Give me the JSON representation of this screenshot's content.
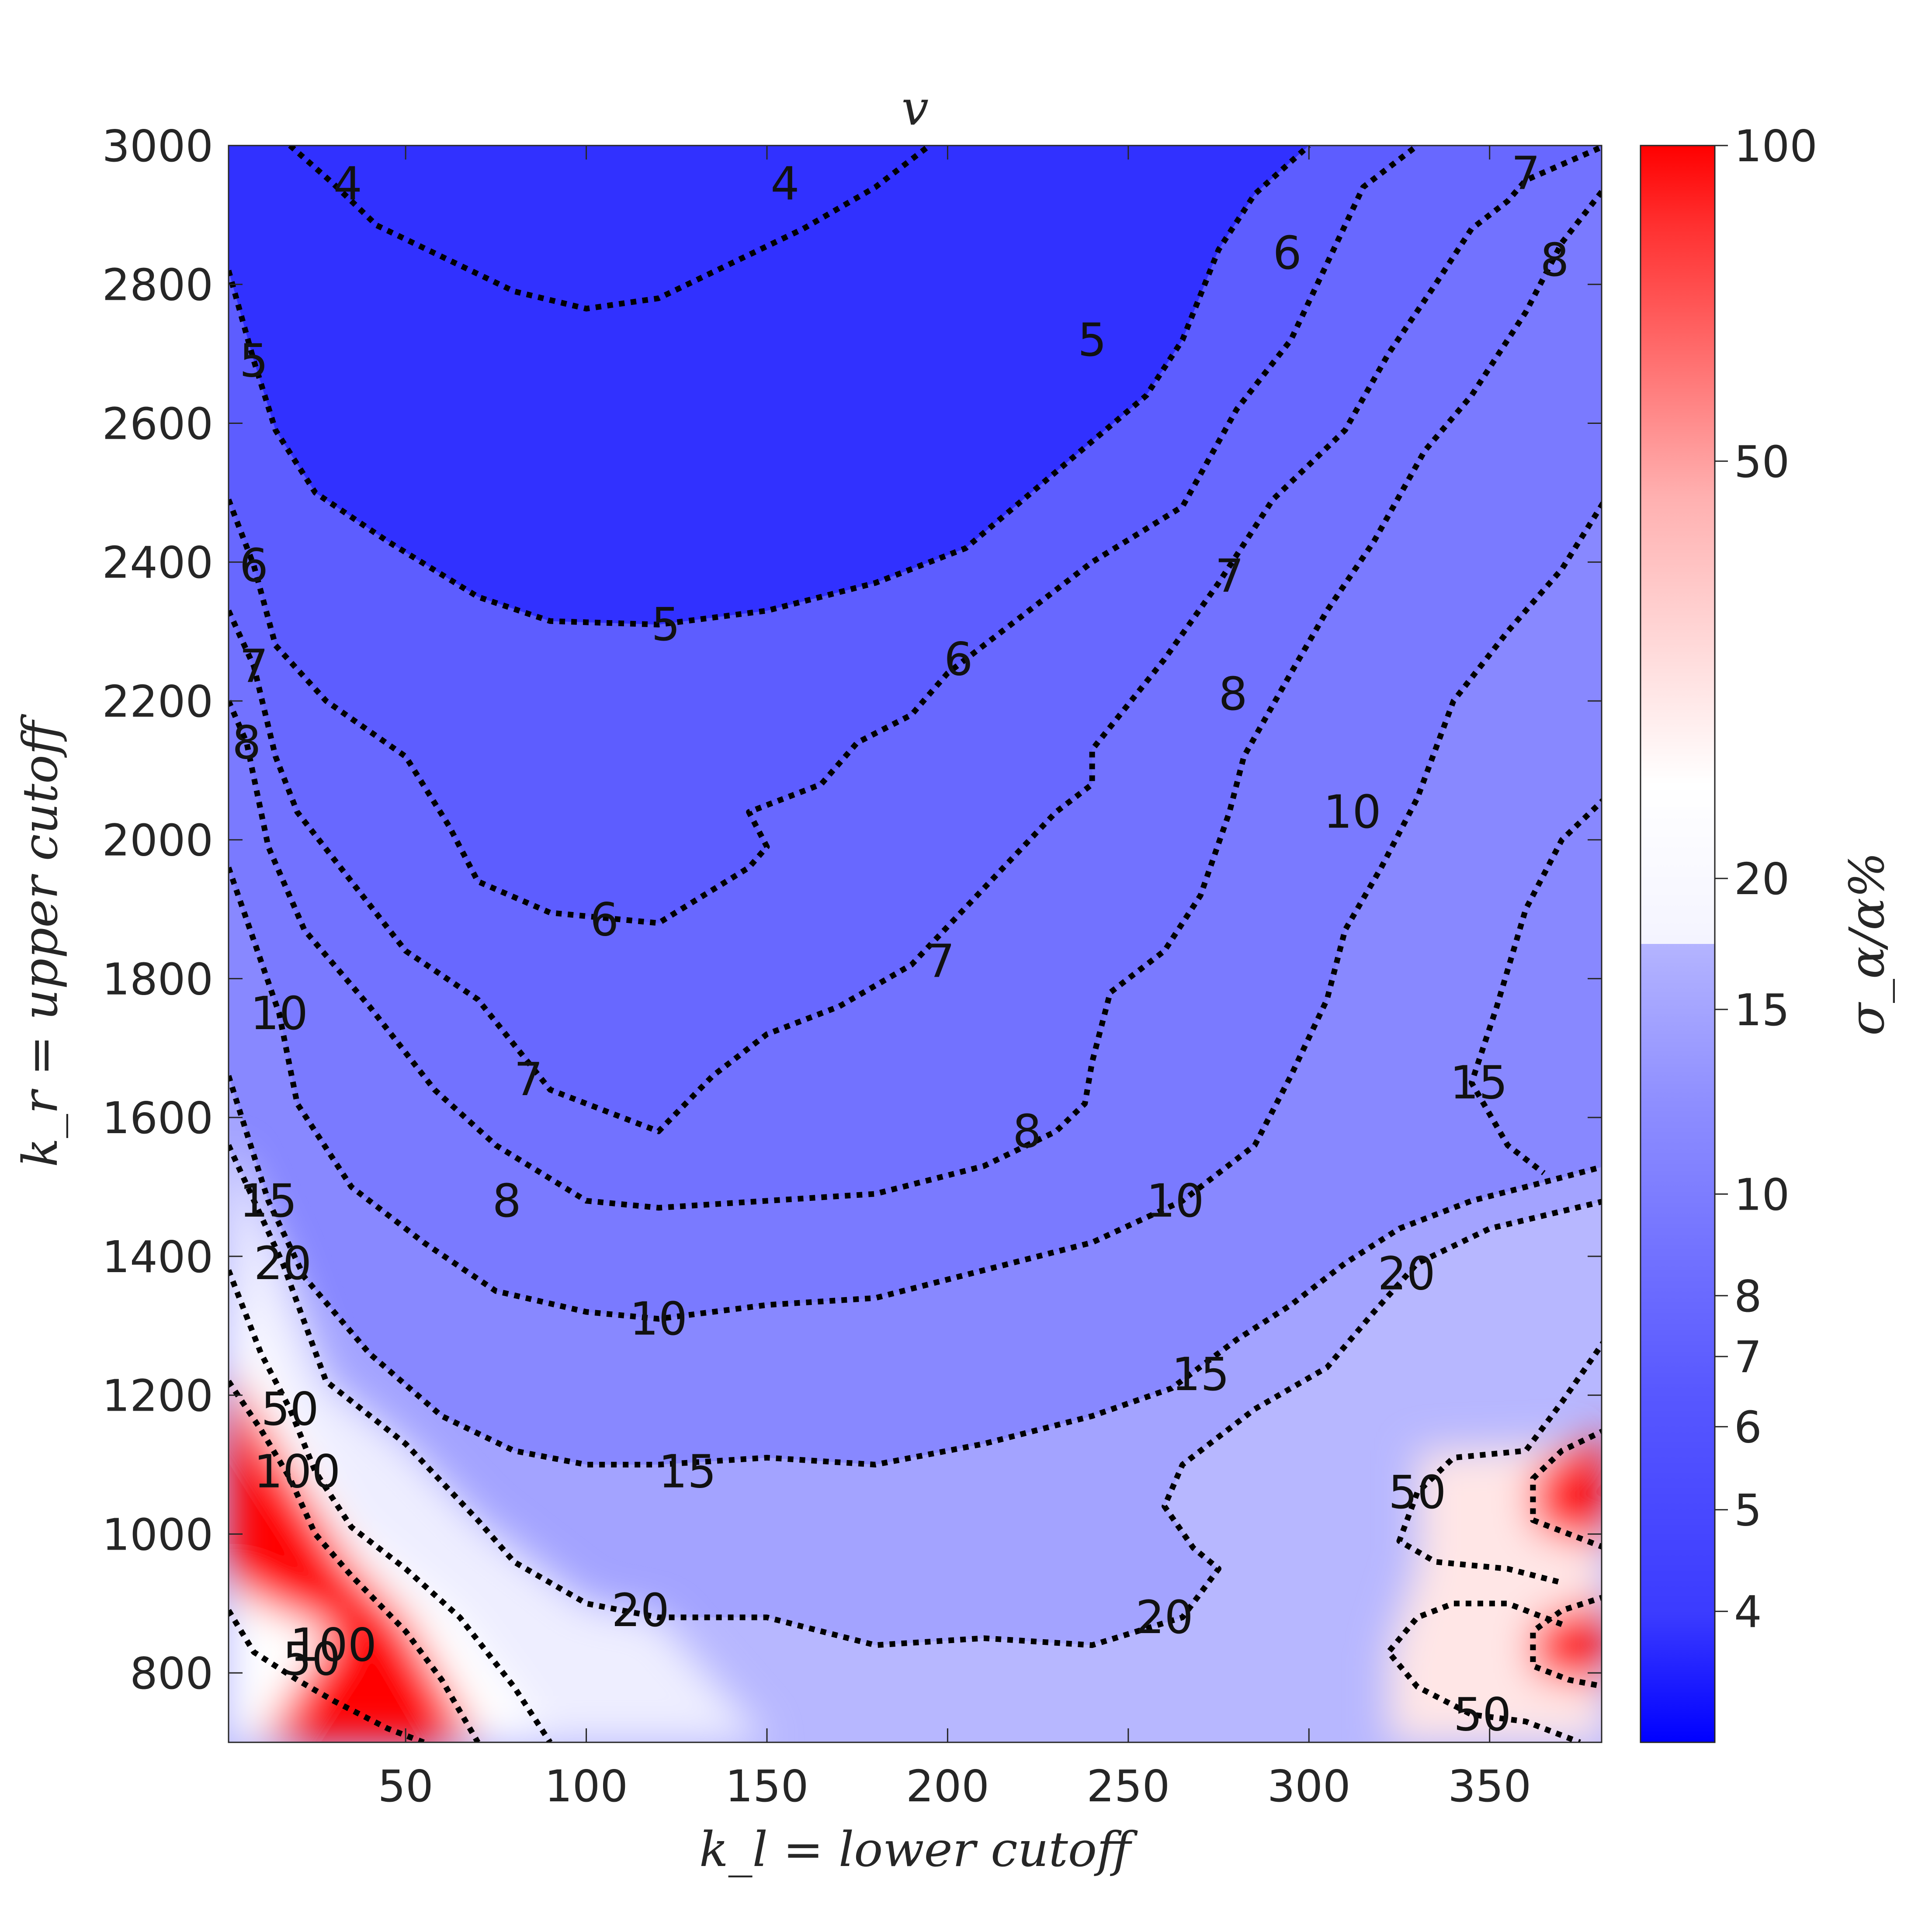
{
  "chart_data": {
    "type": "heatmap",
    "title": "v",
    "xlabel": "k_l = lower cutoff",
    "ylabel": "k_r = upper cutoff",
    "xlim": [
      1,
      381
    ],
    "ylim": [
      700,
      3000
    ],
    "x_ticks": [
      50,
      100,
      150,
      200,
      250,
      300,
      350
    ],
    "y_ticks": [
      800,
      1000,
      1200,
      1400,
      1600,
      1800,
      2000,
      2200,
      2400,
      2600,
      2800,
      3000
    ],
    "colorbar": {
      "label": "σ_α/α%",
      "scale": "log",
      "range": [
        3,
        100
      ],
      "ticks": [
        4,
        5,
        6,
        7,
        8,
        10,
        15,
        20,
        50,
        100
      ],
      "colors": {
        "low": "#0000ff",
        "mid": "#ffffff",
        "high": "#ff0000"
      }
    },
    "contour_levels": [
      4,
      5,
      6,
      7,
      8,
      10,
      15,
      20,
      50,
      100
    ],
    "contours": [
      {
        "level": 4,
        "label": "4",
        "label_at": [
          34,
          2945
        ],
        "points": [
          [
            18,
            3000
          ],
          [
            30,
            2945
          ],
          [
            42,
            2885
          ],
          [
            60,
            2840
          ],
          [
            80,
            2790
          ],
          [
            100,
            2765
          ],
          [
            120,
            2780
          ],
          [
            140,
            2830
          ],
          [
            160,
            2880
          ],
          [
            180,
            2940
          ],
          [
            195,
            3000
          ]
        ]
      },
      {
        "level": 4,
        "label": "4",
        "label_at": [
          155,
          2945
        ]
      },
      {
        "level": 5,
        "label": "5",
        "label_at": [
          8,
          2690
        ],
        "points": [
          [
            1,
            2820
          ],
          [
            8,
            2690
          ],
          [
            14,
            2590
          ],
          [
            25,
            2500
          ],
          [
            45,
            2430
          ],
          [
            70,
            2350
          ],
          [
            90,
            2315
          ],
          [
            120,
            2310
          ],
          [
            150,
            2330
          ],
          [
            180,
            2370
          ],
          [
            205,
            2420
          ],
          [
            230,
            2530
          ],
          [
            255,
            2640
          ],
          [
            265,
            2720
          ],
          [
            275,
            2850
          ],
          [
            285,
            2930
          ],
          [
            300,
            3000
          ]
        ]
      },
      {
        "level": 5,
        "label": "5",
        "label_at": [
          122,
          2310
        ]
      },
      {
        "level": 5,
        "label": "5",
        "label_at": [
          240,
          2720
        ]
      },
      {
        "level": 6,
        "label": "6",
        "label_at": [
          8,
          2395
        ],
        "points": [
          [
            1,
            2490
          ],
          [
            8,
            2395
          ],
          [
            14,
            2280
          ],
          [
            28,
            2200
          ],
          [
            50,
            2120
          ],
          [
            62,
            2020
          ],
          [
            70,
            1940
          ],
          [
            90,
            1895
          ],
          [
            120,
            1880
          ],
          [
            145,
            1960
          ],
          [
            150,
            1990
          ],
          [
            145,
            2040
          ],
          [
            165,
            2080
          ],
          [
            175,
            2140
          ],
          [
            190,
            2180
          ],
          [
            200,
            2240
          ],
          [
            215,
            2300
          ],
          [
            240,
            2400
          ],
          [
            265,
            2480
          ],
          [
            280,
            2620
          ],
          [
            295,
            2720
          ],
          [
            305,
            2830
          ],
          [
            315,
            2940
          ],
          [
            330,
            3000
          ]
        ]
      },
      {
        "level": 6,
        "label": "6",
        "label_at": [
          105,
          1885
        ]
      },
      {
        "level": 6,
        "label": "6",
        "label_at": [
          203,
          2260
        ]
      },
      {
        "level": 6,
        "label": "6",
        "label_at": [
          294,
          2845
        ]
      },
      {
        "level": 7,
        "label": "7",
        "label_at": [
          8,
          2250
        ],
        "points": [
          [
            1,
            2330
          ],
          [
            8,
            2250
          ],
          [
            14,
            2120
          ],
          [
            20,
            2040
          ],
          [
            35,
            1940
          ],
          [
            50,
            1840
          ],
          [
            70,
            1770
          ],
          [
            90,
            1640
          ],
          [
            120,
            1580
          ],
          [
            135,
            1660
          ],
          [
            150,
            1720
          ],
          [
            170,
            1760
          ],
          [
            190,
            1820
          ],
          [
            210,
            1930
          ],
          [
            230,
            2040
          ],
          [
            240,
            2080
          ],
          [
            240,
            2130
          ],
          [
            260,
            2260
          ],
          [
            275,
            2370
          ],
          [
            290,
            2490
          ],
          [
            310,
            2590
          ],
          [
            322,
            2700
          ],
          [
            335,
            2800
          ],
          [
            345,
            2880
          ],
          [
            355,
            2920
          ],
          [
            360,
            2950
          ],
          [
            382,
            3000
          ]
        ]
      },
      {
        "level": 7,
        "label": "7",
        "label_at": [
          84,
          1655
        ]
      },
      {
        "level": 7,
        "label": "7",
        "label_at": [
          198,
          1825
        ]
      },
      {
        "level": 7,
        "label": "7",
        "label_at": [
          278,
          2380
        ]
      },
      {
        "level": 7,
        "label": "7",
        "label_at": [
          360,
          2960
        ]
      },
      {
        "level": 8,
        "label": "8",
        "label_at": [
          6,
          2140
        ],
        "points": [
          [
            1,
            2200
          ],
          [
            6,
            2140
          ],
          [
            12,
            1990
          ],
          [
            22,
            1870
          ],
          [
            40,
            1760
          ],
          [
            58,
            1640
          ],
          [
            75,
            1560
          ],
          [
            100,
            1480
          ],
          [
            120,
            1470
          ],
          [
            150,
            1480
          ],
          [
            180,
            1490
          ],
          [
            210,
            1530
          ],
          [
            230,
            1580
          ],
          [
            238,
            1620
          ],
          [
            240,
            1680
          ],
          [
            245,
            1780
          ],
          [
            260,
            1840
          ],
          [
            270,
            1920
          ],
          [
            278,
            2040
          ],
          [
            282,
            2120
          ],
          [
            295,
            2240
          ],
          [
            305,
            2330
          ],
          [
            318,
            2430
          ],
          [
            332,
            2560
          ],
          [
            345,
            2640
          ],
          [
            360,
            2760
          ],
          [
            370,
            2860
          ],
          [
            382,
            2940
          ]
        ]
      },
      {
        "level": 8,
        "label": "8",
        "label_at": [
          78,
          1480
        ]
      },
      {
        "level": 8,
        "label": "8",
        "label_at": [
          222,
          1580
        ]
      },
      {
        "level": 8,
        "label": "8",
        "label_at": [
          279,
          2210
        ]
      },
      {
        "level": 8,
        "label": "8",
        "label_at": [
          368,
          2835
        ]
      },
      {
        "level": 10,
        "label": "10",
        "label_at": [
          15,
          1750
        ],
        "points": [
          [
            1,
            1960
          ],
          [
            15,
            1750
          ],
          [
            20,
            1620
          ],
          [
            35,
            1500
          ],
          [
            55,
            1420
          ],
          [
            75,
            1350
          ],
          [
            100,
            1320
          ],
          [
            120,
            1310
          ],
          [
            150,
            1330
          ],
          [
            180,
            1340
          ],
          [
            210,
            1380
          ],
          [
            240,
            1420
          ],
          [
            265,
            1480
          ],
          [
            285,
            1560
          ],
          [
            295,
            1660
          ],
          [
            305,
            1770
          ],
          [
            310,
            1870
          ],
          [
            320,
            1960
          ],
          [
            330,
            2060
          ],
          [
            340,
            2200
          ],
          [
            355,
            2300
          ],
          [
            370,
            2390
          ],
          [
            382,
            2490
          ]
        ]
      },
      {
        "level": 10,
        "label": "10",
        "label_at": [
          120,
          1310
        ]
      },
      {
        "level": 10,
        "label": "10",
        "label_at": [
          263,
          1480
        ]
      },
      {
        "level": 10,
        "label": "10",
        "label_at": [
          312,
          2040
        ]
      },
      {
        "level": 15,
        "label": "15",
        "label_at": [
          12,
          1480
        ],
        "points": [
          [
            1,
            1660
          ],
          [
            12,
            1480
          ],
          [
            22,
            1370
          ],
          [
            40,
            1260
          ],
          [
            60,
            1170
          ],
          [
            80,
            1120
          ],
          [
            100,
            1100
          ],
          [
            120,
            1100
          ],
          [
            150,
            1110
          ],
          [
            180,
            1100
          ],
          [
            210,
            1130
          ],
          [
            240,
            1170
          ],
          [
            262,
            1210
          ],
          [
            280,
            1280
          ],
          [
            295,
            1330
          ],
          [
            310,
            1390
          ],
          [
            325,
            1440
          ],
          [
            345,
            1480
          ],
          [
            360,
            1500
          ],
          [
            382,
            1530
          ]
        ]
      },
      {
        "level": 15,
        "label": "15",
        "label_at": [
          128,
          1090
        ]
      },
      {
        "level": 15,
        "label": "15",
        "label_at": [
          270,
          1230
        ]
      },
      {
        "level": 15,
        "label": "15",
        "label_at": [
          347,
          1650
        ],
        "points": [
          [
            382,
            2060
          ],
          [
            370,
            2000
          ],
          [
            360,
            1900
          ],
          [
            352,
            1760
          ],
          [
            345,
            1650
          ],
          [
            355,
            1560
          ],
          [
            365,
            1520
          ]
        ]
      },
      {
        "level": 20,
        "label": "20",
        "label_at": [
          16,
          1390
        ],
        "points": [
          [
            1,
            1560
          ],
          [
            16,
            1390
          ],
          [
            28,
            1220
          ],
          [
            50,
            1130
          ],
          [
            70,
            1020
          ],
          [
            80,
            960
          ],
          [
            100,
            900
          ],
          [
            120,
            880
          ],
          [
            150,
            880
          ],
          [
            180,
            840
          ],
          [
            210,
            850
          ],
          [
            240,
            840
          ],
          [
            265,
            880
          ],
          [
            275,
            950
          ],
          [
            268,
            980
          ],
          [
            260,
            1040
          ],
          [
            265,
            1100
          ],
          [
            285,
            1180
          ],
          [
            305,
            1240
          ],
          [
            318,
            1320
          ],
          [
            330,
            1390
          ],
          [
            350,
            1440
          ],
          [
            382,
            1480
          ]
        ]
      },
      {
        "level": 20,
        "label": "20",
        "label_at": [
          115,
          890
        ]
      },
      {
        "level": 20,
        "label": "20",
        "label_at": [
          260,
          880
        ]
      },
      {
        "level": 20,
        "label": "20",
        "label_at": [
          327,
          1375
        ]
      },
      {
        "level": 50,
        "label": "50",
        "label_at": [
          18,
          1180
        ],
        "points": [
          [
            1,
            1380
          ],
          [
            10,
            1260
          ],
          [
            18,
            1180
          ],
          [
            25,
            1090
          ],
          [
            35,
            1010
          ],
          [
            50,
            950
          ],
          [
            65,
            880
          ],
          [
            80,
            780
          ],
          [
            90,
            700
          ]
        ]
      },
      {
        "level": 50,
        "label": "50",
        "label_at": [
          24,
          820
        ],
        "points": [
          [
            1,
            890
          ],
          [
            8,
            830
          ],
          [
            20,
            790
          ],
          [
            30,
            760
          ],
          [
            45,
            720
          ],
          [
            55,
            700
          ]
        ]
      },
      {
        "level": 50,
        "label": "50",
        "label_at": [
          330,
          1060
        ],
        "points": [
          [
            382,
            1280
          ],
          [
            370,
            1190
          ],
          [
            360,
            1120
          ],
          [
            340,
            1110
          ],
          [
            330,
            1060
          ],
          [
            325,
            990
          ],
          [
            335,
            960
          ],
          [
            355,
            950
          ],
          [
            370,
            930
          ]
        ]
      },
      {
        "level": 50,
        "label": "50",
        "label_at": [
          348,
          740
        ],
        "points": [
          [
            370,
            870
          ],
          [
            355,
            900
          ],
          [
            340,
            900
          ],
          [
            330,
            880
          ],
          [
            322,
            830
          ],
          [
            330,
            780
          ],
          [
            345,
            740
          ],
          [
            360,
            730
          ],
          [
            375,
            700
          ]
        ]
      },
      {
        "level": 100,
        "label": "100",
        "label_at": [
          20,
          1090
        ],
        "points": [
          [
            1,
            1220
          ],
          [
            10,
            1150
          ],
          [
            18,
            1080
          ],
          [
            25,
            1000
          ],
          [
            35,
            940
          ],
          [
            50,
            860
          ],
          [
            60,
            790
          ],
          [
            70,
            700
          ]
        ]
      },
      {
        "level": 100,
        "label": "100",
        "label_at": [
          30,
          840
        ]
      },
      {
        "level": 100,
        "label": "100",
        "label_at": null,
        "points": [
          [
            382,
            1150
          ],
          [
            370,
            1120
          ],
          [
            362,
            1080
          ],
          [
            362,
            1020
          ],
          [
            372,
            1000
          ],
          [
            382,
            980
          ]
        ]
      },
      {
        "level": 100,
        "label": "100",
        "label_at": null,
        "points": [
          [
            382,
            910
          ],
          [
            370,
            890
          ],
          [
            362,
            860
          ],
          [
            362,
            810
          ],
          [
            372,
            790
          ],
          [
            382,
            780
          ]
        ]
      }
    ],
    "field_notes": "Diverging colormap: blue (low relative error) through white (~50) to red (~100+). Red regions lie along the lower-left diagonal and at the lower-right edge."
  }
}
